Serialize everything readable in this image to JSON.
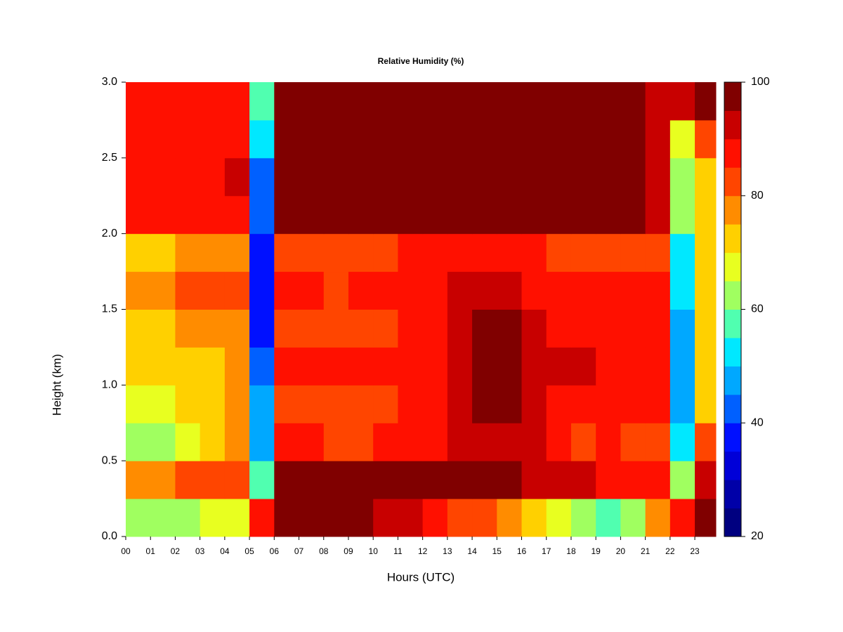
{
  "chart_data": {
    "type": "heatmap",
    "title": "Relative Humidity (%)",
    "x_label": "Hours (UTC)",
    "y_label": "Height (km)",
    "x": [
      0,
      1,
      2,
      3,
      4,
      5,
      6,
      7,
      8,
      9,
      10,
      11,
      12,
      13,
      14,
      15,
      16,
      17,
      18,
      19,
      20,
      21,
      22,
      23
    ],
    "y": [
      0,
      0.25,
      0.5,
      0.75,
      1,
      1.25,
      1.5,
      1.75,
      2,
      2.25,
      2.5,
      2.75
    ],
    "z": [
      [
        62,
        60,
        62,
        65,
        66,
        85,
        96,
        96,
        96,
        96,
        92,
        90,
        86,
        84,
        80,
        78,
        72,
        65,
        60,
        58,
        62,
        75,
        88,
        97
      ],
      [
        76,
        78,
        80,
        80,
        82,
        55,
        97,
        96,
        95,
        95,
        95,
        96,
        97,
        97,
        97,
        96,
        92,
        90,
        90,
        88,
        88,
        88,
        60,
        90
      ],
      [
        62,
        64,
        68,
        70,
        75,
        48,
        86,
        85,
        84,
        84,
        85,
        86,
        88,
        92,
        94,
        94,
        90,
        86,
        84,
        85,
        84,
        84,
        52,
        80
      ],
      [
        66,
        68,
        70,
        72,
        75,
        45,
        82,
        82,
        80,
        82,
        84,
        86,
        88,
        90,
        96,
        96,
        92,
        88,
        88,
        86,
        86,
        86,
        47,
        72
      ],
      [
        70,
        70,
        72,
        74,
        76,
        40,
        86,
        86,
        85,
        86,
        86,
        88,
        88,
        90,
        97,
        97,
        92,
        90,
        90,
        88,
        88,
        88,
        45,
        70
      ],
      [
        72,
        74,
        76,
        76,
        78,
        38,
        84,
        84,
        82,
        84,
        84,
        86,
        88,
        90,
        95,
        95,
        90,
        88,
        86,
        86,
        86,
        86,
        48,
        72
      ],
      [
        76,
        78,
        80,
        80,
        80,
        37,
        86,
        86,
        84,
        86,
        86,
        88,
        88,
        90,
        93,
        93,
        88,
        86,
        86,
        86,
        86,
        86,
        50,
        72
      ],
      [
        72,
        74,
        76,
        76,
        78,
        37,
        84,
        84,
        83,
        84,
        84,
        86,
        86,
        88,
        88,
        88,
        86,
        84,
        84,
        84,
        84,
        84,
        52,
        70
      ],
      [
        86,
        88,
        88,
        88,
        88,
        40,
        97,
        97,
        96,
        97,
        97,
        97,
        97,
        97,
        97,
        97,
        97,
        97,
        97,
        97,
        97,
        92,
        60,
        72
      ],
      [
        88,
        88,
        88,
        88,
        90,
        42,
        98,
        98,
        98,
        98,
        98,
        98,
        98,
        98,
        98,
        98,
        98,
        98,
        98,
        98,
        98,
        92,
        60,
        70
      ],
      [
        88,
        86,
        86,
        88,
        88,
        50,
        98,
        98,
        98,
        98,
        98,
        98,
        98,
        98,
        98,
        98,
        98,
        98,
        98,
        98,
        98,
        92,
        65,
        80
      ],
      [
        86,
        86,
        88,
        88,
        88,
        58,
        97,
        97,
        98,
        98,
        98,
        98,
        98,
        98,
        98,
        98,
        98,
        98,
        98,
        98,
        98,
        92,
        92,
        97
      ]
    ],
    "xlim": [
      0,
      23.85
    ],
    "ylim": [
      0,
      3
    ],
    "zlim": [
      20,
      100
    ],
    "colors": [
      "#000080",
      "#0000a8",
      "#0000d8",
      "#0010ff",
      "#0060ff",
      "#00a8ff",
      "#00e8ff",
      "#50ffb0",
      "#a0ff60",
      "#e8ff20",
      "#ffd000",
      "#ff8c00",
      "#ff4500",
      "#ff1000",
      "#c80000",
      "#800000"
    ],
    "xticks": [
      {
        "value": 0,
        "label": "00"
      },
      {
        "value": 1,
        "label": "01"
      },
      {
        "value": 2,
        "label": "02"
      },
      {
        "value": 3,
        "label": "03"
      },
      {
        "value": 4,
        "label": "04"
      },
      {
        "value": 5,
        "label": "05"
      },
      {
        "value": 6,
        "label": "06"
      },
      {
        "value": 7,
        "label": "07"
      },
      {
        "value": 8,
        "label": "08"
      },
      {
        "value": 9,
        "label": "09"
      },
      10,
      11,
      12,
      13,
      14,
      15,
      16,
      17,
      18,
      19,
      20,
      21,
      22,
      23
    ],
    "yticks": [
      {
        "value": 0,
        "label": "0.0"
      },
      0.5,
      {
        "value": 1,
        "label": "1.0"
      },
      1.5,
      {
        "value": 2,
        "label": "2.0"
      },
      2.5,
      {
        "value": 3,
        "label": "3.0"
      }
    ],
    "zticks": [
      20,
      40,
      60,
      80,
      100
    ]
  }
}
